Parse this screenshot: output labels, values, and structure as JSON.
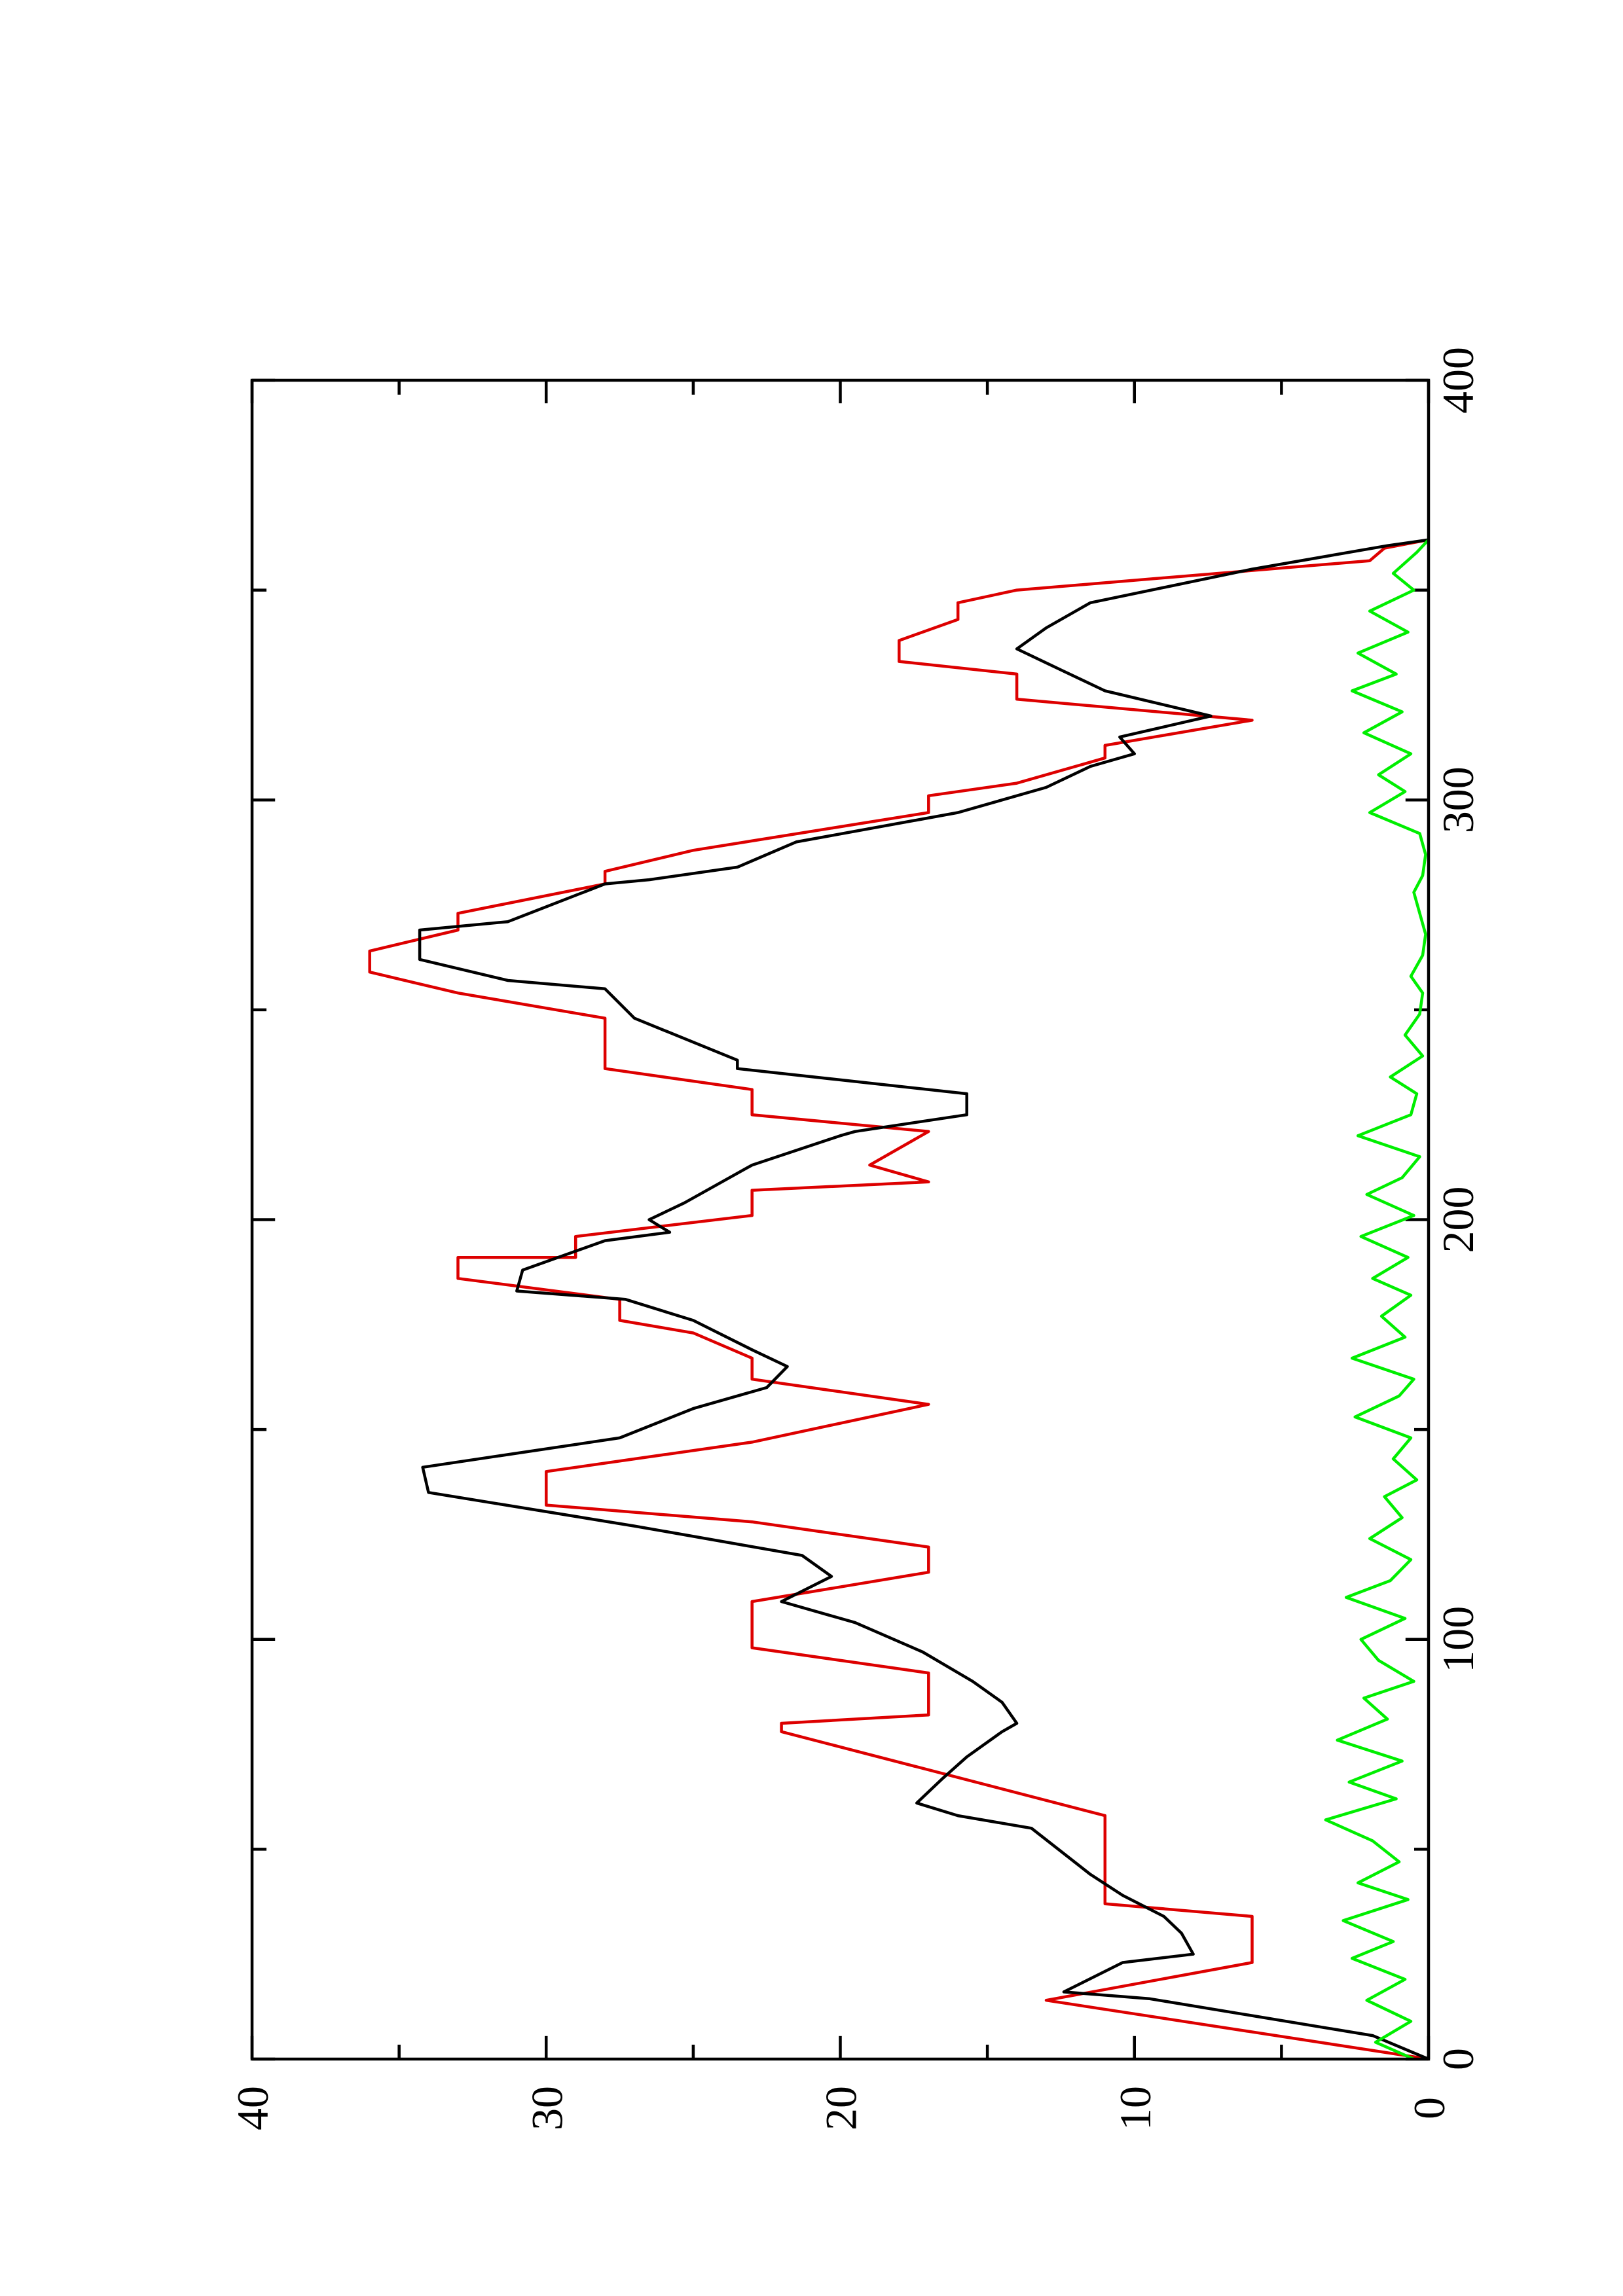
{
  "chart_data": {
    "type": "line",
    "xlim": [
      0,
      400
    ],
    "xticks": [
      0,
      100,
      200,
      300,
      400
    ],
    "xminor": [
      50,
      150,
      250,
      350
    ],
    "ylim": [
      0,
      40
    ],
    "yticks": [
      0,
      10,
      20,
      30,
      40
    ],
    "yminor": [
      5,
      15,
      25,
      35
    ],
    "series": [
      {
        "color": "#dd0000",
        "x": [
          0,
          14,
          23,
          34,
          37,
          58,
          78,
          80,
          82,
          92,
          98,
          109,
          116,
          122,
          128,
          132,
          140,
          147,
          156,
          162,
          167,
          173,
          176,
          181,
          186,
          191,
          191,
          196,
          201,
          207,
          209,
          213,
          221,
          225,
          231,
          236,
          248,
          254,
          259,
          264,
          269,
          273,
          280,
          283,
          288,
          297,
          301,
          304,
          310,
          313,
          319,
          324,
          330,
          333,
          338,
          343,
          347,
          350,
          357,
          360,
          362
        ],
        "values": [
          0,
          13,
          6,
          6,
          11,
          11,
          22,
          22,
          17,
          17,
          23,
          23,
          17,
          17,
          23,
          30,
          30,
          23,
          17,
          23,
          23,
          25,
          27.5,
          27.5,
          33,
          33,
          29,
          29,
          23,
          23,
          17,
          19,
          17,
          23,
          23,
          28,
          28,
          33,
          36,
          36,
          33,
          33,
          28,
          28,
          25,
          17,
          17,
          14,
          11,
          11,
          6,
          14,
          14,
          18,
          18,
          16,
          16,
          14,
          2,
          1.5,
          0
        ]
      },
      {
        "color": "#000000",
        "x": [
          0,
          5.6,
          14.4,
          16,
          23,
          25,
          30,
          34,
          39,
          44,
          55,
          58,
          61,
          67,
          72,
          78,
          80,
          85,
          90,
          97,
          104,
          109,
          115,
          120,
          127,
          135,
          141,
          148,
          155,
          160,
          165,
          169,
          176,
          181,
          183,
          188,
          195,
          197,
          200,
          204,
          213,
          220,
          221,
          225,
          230,
          236,
          238,
          248,
          255,
          257,
          262,
          269,
          271,
          280,
          281,
          284,
          290,
          297,
          303,
          308,
          311,
          315,
          320,
          326,
          331,
          336,
          341,
          347,
          355,
          360.6,
          362
        ],
        "values": [
          0,
          1.9,
          9.5,
          12.4,
          10.4,
          8,
          8.4,
          9,
          10.4,
          11.5,
          13.5,
          16,
          17.4,
          16.5,
          15.7,
          14.5,
          14,
          14.5,
          15.5,
          17.2,
          19.5,
          22,
          20.3,
          21.3,
          27,
          34,
          34.2,
          27.5,
          25,
          22.5,
          21.8,
          23,
          25,
          27.3,
          31,
          30.8,
          28,
          25.8,
          26.5,
          25.3,
          23,
          20,
          19.5,
          15.7,
          15.7,
          23.5,
          23.5,
          27,
          28,
          31.3,
          34.3,
          34.3,
          31.3,
          28,
          26.5,
          23.5,
          21.5,
          16,
          13,
          11.5,
          10,
          10.5,
          7.4,
          11,
          12.5,
          14,
          13,
          11.5,
          6,
          1.4,
          0
        ]
      },
      {
        "color": "#00ee00",
        "x": [
          0,
          4,
          9,
          14,
          19,
          24,
          28,
          33,
          38,
          42,
          47,
          52,
          57,
          62,
          66,
          71,
          76,
          81,
          86,
          90,
          95,
          100,
          105,
          110,
          114,
          119,
          124,
          129,
          134,
          138,
          143,
          148,
          153,
          158,
          162,
          167,
          172,
          177,
          182,
          186,
          191,
          196,
          201,
          206,
          210,
          215,
          220,
          225,
          230,
          234,
          239,
          244,
          249,
          254,
          258,
          263,
          268,
          273,
          278,
          282,
          287,
          292,
          297,
          302,
          306,
          311,
          316,
          321,
          326,
          330,
          335,
          340,
          345,
          350,
          354,
          359,
          362
        ],
        "values": [
          0.5,
          1.8,
          0.6,
          2.1,
          0.8,
          2.6,
          1.2,
          2.9,
          0.7,
          2.4,
          1.0,
          1.9,
          3.5,
          1.1,
          2.7,
          0.9,
          3.1,
          1.4,
          2.2,
          0.5,
          1.7,
          2.3,
          0.8,
          2.8,
          1.3,
          0.6,
          2.0,
          0.9,
          1.5,
          0.4,
          1.2,
          0.6,
          2.5,
          1.0,
          0.5,
          2.6,
          0.8,
          1.6,
          0.6,
          1.9,
          0.7,
          2.3,
          0.5,
          2.1,
          0.9,
          0.3,
          2.4,
          0.6,
          0.4,
          1.3,
          0.2,
          0.8,
          0.3,
          0.2,
          0.6,
          0.2,
          0.1,
          0.3,
          0.5,
          0.2,
          0.1,
          0.3,
          2.0,
          0.8,
          1.7,
          0.6,
          2.2,
          0.9,
          2.6,
          1.1,
          2.4,
          0.7,
          2.0,
          0.5,
          1.2,
          0.4,
          0
        ]
      }
    ]
  }
}
